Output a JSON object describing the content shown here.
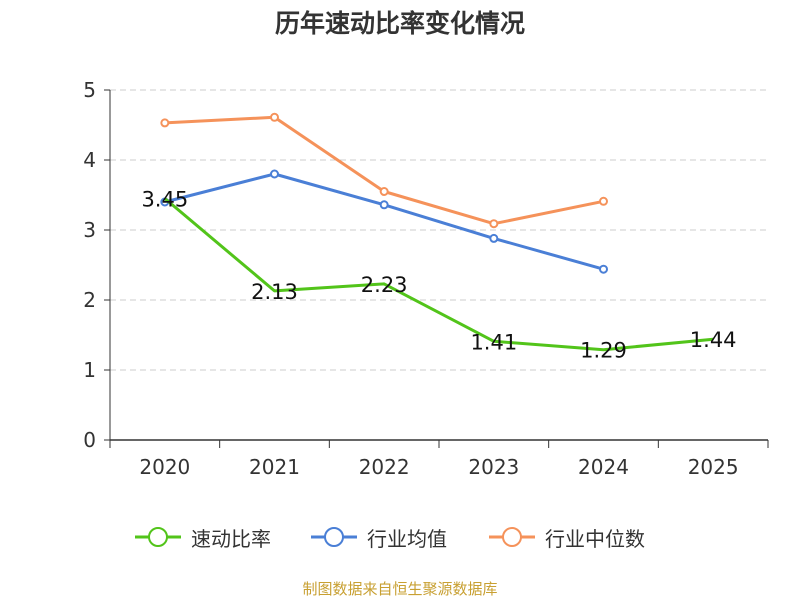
{
  "chart_data": {
    "type": "line",
    "title": "历年速动比率变化情况",
    "categories": [
      "2020",
      "2021",
      "2022",
      "2023",
      "2024",
      "2025"
    ],
    "ylim": [
      0,
      5
    ],
    "yticks": [
      0,
      1,
      2,
      3,
      4,
      5
    ],
    "grid": true,
    "xlabel": "",
    "ylabel": "",
    "series": [
      {
        "name": "速动比率",
        "color": "#52c41a",
        "values": [
          3.45,
          2.13,
          2.23,
          1.41,
          1.29,
          1.44
        ],
        "show_labels": true
      },
      {
        "name": "行业均值",
        "color": "#4a7fd6",
        "values": [
          3.4,
          3.8,
          3.36,
          2.88,
          2.44,
          null
        ],
        "show_labels": false
      },
      {
        "name": "行业中位数",
        "color": "#f5925a",
        "values": [
          4.53,
          4.61,
          3.55,
          3.09,
          3.41,
          null
        ],
        "show_labels": false
      }
    ],
    "legend_position": "bottom"
  },
  "source_text": "制图数据来自恒生聚源数据库"
}
